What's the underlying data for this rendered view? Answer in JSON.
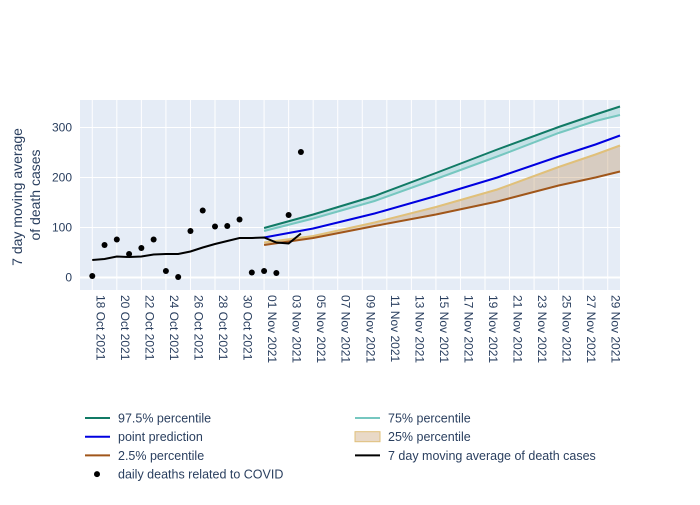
{
  "chart_data": {
    "type": "line",
    "ylabel_lines": [
      "7 day moving average",
      "of death cases"
    ],
    "xlabel": "",
    "title": "",
    "ylim": [
      -25,
      355
    ],
    "yticks": [
      0,
      100,
      200,
      300
    ],
    "x_start": "2021-10-17",
    "x_end": "2021-11-30",
    "xtick_labels": [
      "18 Oct 2021",
      "20 Oct 2021",
      "22 Oct 2021",
      "24 Oct 2021",
      "26 Oct 2021",
      "28 Oct 2021",
      "30 Oct 2021",
      "01 Nov 2021",
      "03 Nov 2021",
      "05 Nov 2021",
      "07 Nov 2021",
      "09 Nov 2021",
      "11 Nov 2021",
      "13 Nov 2021",
      "15 Nov 2021",
      "17 Nov 2021",
      "19 Nov 2021",
      "21 Nov 2021",
      "23 Nov 2021",
      "25 Nov 2021",
      "27 Nov 2021",
      "29 Nov 2021"
    ],
    "grid": true,
    "legend_position": "bottom",
    "colors": {
      "p975": "#117a65",
      "p75": "#76c7c0",
      "point": "#0000e0",
      "p25": "#e0c07a",
      "p025": "#a0561a",
      "moving_avg": "#000000",
      "daily": "#000000",
      "band_upper_fill": "rgba(118,199,192,0.30)",
      "band_lower_fill": "rgba(182,130,70,0.30)",
      "plot_bg": "#e5ecf6"
    },
    "series": [
      {
        "key": "daily",
        "name": "daily deaths related to COVID",
        "kind": "markers",
        "x": [
          "2021-10-18",
          "2021-10-19",
          "2021-10-20",
          "2021-10-21",
          "2021-10-22",
          "2021-10-23",
          "2021-10-24",
          "2021-10-25",
          "2021-10-26",
          "2021-10-27",
          "2021-10-28",
          "2021-10-29",
          "2021-10-30",
          "2021-10-31",
          "2021-11-01",
          "2021-11-02",
          "2021-11-03",
          "2021-11-04"
        ],
        "values": [
          3,
          65,
          76,
          47,
          59,
          76,
          13,
          1,
          93,
          134,
          102,
          103,
          116,
          10,
          13,
          9,
          125,
          251
        ]
      },
      {
        "key": "moving_avg",
        "name": "7 day moving average of death cases",
        "kind": "line",
        "x": [
          "2021-10-18",
          "2021-10-19",
          "2021-10-20",
          "2021-10-21",
          "2021-10-22",
          "2021-10-23",
          "2021-10-24",
          "2021-10-25",
          "2021-10-26",
          "2021-10-27",
          "2021-10-28",
          "2021-10-29",
          "2021-10-30",
          "2021-10-31",
          "2021-11-01",
          "2021-11-02",
          "2021-11-03",
          "2021-11-04"
        ],
        "values": [
          35,
          37,
          42,
          41,
          42,
          46,
          47,
          47,
          52,
          60,
          67,
          73,
          79,
          79,
          80,
          70,
          68,
          88
        ]
      },
      {
        "key": "p975",
        "name": "97.5% percentile",
        "kind": "line",
        "x": [
          "2021-11-01",
          "2021-11-05",
          "2021-11-10",
          "2021-11-15",
          "2021-11-20",
          "2021-11-25",
          "2021-11-28",
          "2021-11-30"
        ],
        "values": [
          99,
          126,
          163,
          209,
          256,
          301,
          326,
          342
        ]
      },
      {
        "key": "p75",
        "name": "75% percentile",
        "kind": "line",
        "x": [
          "2021-11-01",
          "2021-11-05",
          "2021-11-10",
          "2021-11-15",
          "2021-11-20",
          "2021-11-25",
          "2021-11-28",
          "2021-11-30"
        ],
        "values": [
          93,
          118,
          153,
          197,
          242,
          289,
          313,
          325
        ]
      },
      {
        "key": "point",
        "name": "point prediction",
        "kind": "line",
        "x": [
          "2021-11-01",
          "2021-11-05",
          "2021-11-10",
          "2021-11-15",
          "2021-11-20",
          "2021-11-25",
          "2021-11-28",
          "2021-11-30"
        ],
        "values": [
          80,
          98,
          128,
          163,
          200,
          242,
          266,
          284
        ]
      },
      {
        "key": "p25",
        "name": "25% percentile",
        "kind": "line",
        "x": [
          "2021-11-01",
          "2021-11-05",
          "2021-11-10",
          "2021-11-15",
          "2021-11-20",
          "2021-11-25",
          "2021-11-28",
          "2021-11-30"
        ],
        "values": [
          70,
          83,
          110,
          141,
          176,
          221,
          246,
          264
        ]
      },
      {
        "key": "p025",
        "name": "2.5% percentile",
        "kind": "line",
        "x": [
          "2021-11-01",
          "2021-11-05",
          "2021-11-10",
          "2021-11-15",
          "2021-11-20",
          "2021-11-25",
          "2021-11-28",
          "2021-11-30"
        ],
        "values": [
          65,
          79,
          103,
          126,
          152,
          184,
          200,
          212
        ]
      }
    ],
    "legend": [
      {
        "key": "p975",
        "label": "97.5% percentile",
        "kind": "line"
      },
      {
        "key": "p75",
        "label": "75% percentile",
        "kind": "line"
      },
      {
        "key": "point",
        "label": "point prediction",
        "kind": "line"
      },
      {
        "key": "p25",
        "label": "25% percentile",
        "kind": "band"
      },
      {
        "key": "p025",
        "label": "2.5% percentile",
        "kind": "line"
      },
      {
        "key": "moving_avg",
        "label": "7 day moving average of death cases",
        "kind": "line"
      },
      {
        "key": "daily",
        "label": "daily deaths related to COVID",
        "kind": "marker"
      }
    ]
  }
}
